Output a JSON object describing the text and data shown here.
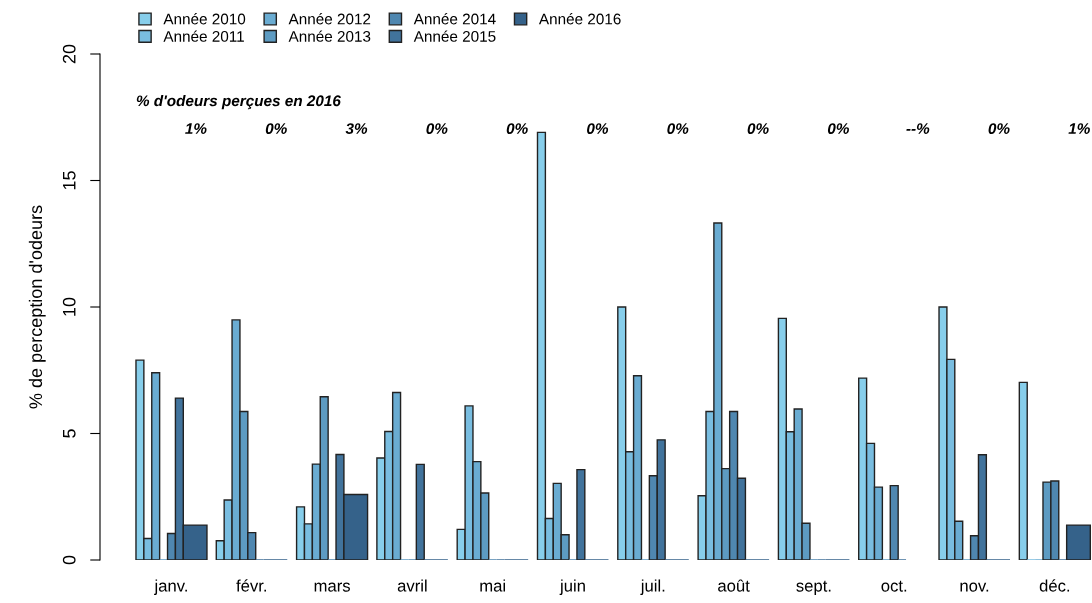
{
  "chart_data": {
    "type": "bar",
    "ylabel": "% de perception d'odeurs",
    "categories": [
      "janv.",
      "févr.",
      "mars",
      "avril",
      "mai",
      "juin",
      "juil.",
      "août",
      "sept.",
      "oct.",
      "nov.",
      "déc."
    ],
    "series": [
      {
        "name": "Année 2010",
        "color": "#87ceeb",
        "values": [
          7.9,
          0.76,
          2.1,
          4.03,
          1.21,
          16.9,
          10.0,
          2.54,
          9.55,
          7.19,
          10.0,
          7.02
        ]
      },
      {
        "name": "Année 2011",
        "color": "#79bde0",
        "values": [
          0.85,
          2.37,
          1.43,
          5.08,
          6.09,
          1.64,
          4.28,
          5.87,
          5.07,
          4.61,
          7.93,
          0
        ]
      },
      {
        "name": "Année 2012",
        "color": "#6aacd2",
        "values": [
          7.4,
          9.49,
          3.79,
          6.62,
          3.89,
          3.03,
          7.28,
          13.32,
          5.97,
          2.88,
          1.53,
          0
        ]
      },
      {
        "name": "Année 2013",
        "color": "#5d9bc2",
        "values": [
          0,
          5.87,
          6.45,
          0,
          2.65,
          1.0,
          0,
          3.61,
          1.45,
          0,
          0,
          3.08
        ]
      },
      {
        "name": "Année 2014",
        "color": "#4f87b0",
        "values": [
          1.05,
          1.08,
          0,
          0,
          0,
          0,
          3.33,
          5.87,
          0,
          2.94,
          0.96,
          3.12
        ]
      },
      {
        "name": "Année 2015",
        "color": "#41739c",
        "values": [
          6.4,
          0,
          4.17,
          3.78,
          0,
          3.57,
          4.75,
          3.23,
          0,
          0,
          4.16,
          0
        ]
      },
      {
        "name": "Année 2016",
        "color": "#35628a",
        "values": [
          1.38,
          0,
          2.59,
          0,
          0,
          0,
          0,
          0,
          0,
          null,
          0,
          1.38
        ]
      }
    ],
    "ylim": [
      0,
      20
    ],
    "yticks": [
      0,
      5,
      10,
      15,
      20
    ],
    "grid": false,
    "legend": "top left",
    "annotations": [
      "% d'odeurs perçues en 2016",
      "1%",
      "0%",
      "3%",
      "0%",
      "0%",
      "0%",
      "0%",
      "0%",
      "0%",
      "--%",
      "0%",
      "1%"
    ]
  }
}
